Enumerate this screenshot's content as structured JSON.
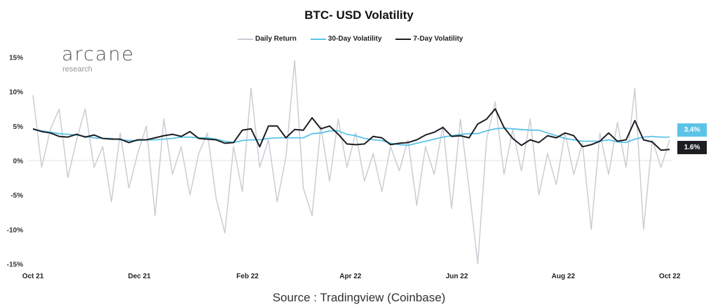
{
  "chart_data": {
    "type": "line",
    "title": "BTC- USD Volatility",
    "source": "Source : Tradingview (Coinbase)",
    "logo": {
      "name": "arcane",
      "sub": "research"
    },
    "ylim": [
      -15,
      15
    ],
    "yticks": [
      15,
      10,
      5,
      0,
      -5,
      -10,
      -15
    ],
    "ytick_labels": [
      "15%",
      "10%",
      "5%",
      "0%",
      "-5%",
      "-10%",
      "-15%"
    ],
    "xticks": [
      {
        "date": "2021-10-01",
        "label": "Oct 21"
      },
      {
        "date": "2021-12-01",
        "label": "Dec 21"
      },
      {
        "date": "2022-02-01",
        "label": "Feb 22"
      },
      {
        "date": "2022-04-01",
        "label": "Apr 22"
      },
      {
        "date": "2022-06-01",
        "label": "Jun 22"
      },
      {
        "date": "2022-08-01",
        "label": "Aug 22"
      },
      {
        "date": "2022-10-01",
        "label": "Oct 22"
      }
    ],
    "x_start": "2021-10-01",
    "x_step_days": 5,
    "legend_placement": "top",
    "series": [
      {
        "name": "Daily Return",
        "color": "#c9ced4",
        "values": [
          9.5,
          -1,
          4.5,
          7.5,
          -2.5,
          3,
          7.5,
          -1,
          2,
          -6,
          4,
          -4,
          1,
          5,
          -8,
          6,
          -2,
          2,
          -5,
          1,
          4,
          -5.5,
          -10.5,
          2,
          -4.5,
          10.5,
          -1,
          3,
          -6,
          0.5,
          14.5,
          -4,
          -8,
          5,
          -3,
          6,
          -1,
          4,
          -3,
          1,
          -4.5,
          2,
          -1.5,
          3,
          -6.5,
          2,
          -2,
          5,
          -7,
          6,
          -4,
          -15,
          3,
          8.5,
          -2,
          4.5,
          -1.5,
          6,
          -5,
          1,
          -3.5,
          4,
          -2,
          2.5,
          -10,
          4,
          -2,
          5.5,
          -1,
          10.5,
          -10,
          3,
          -1,
          3
        ]
      },
      {
        "name": "30-Day Volatility",
        "color": "#5bc3e8",
        "values": [
          4.5,
          4.3,
          4.1,
          3.9,
          3.8,
          3.7,
          3.5,
          3.3,
          3.2,
          3.2,
          3.0,
          2.9,
          2.9,
          3.0,
          3.0,
          3.1,
          3.2,
          3.4,
          3.4,
          3.3,
          3.3,
          3.1,
          2.8,
          2.6,
          2.9,
          3.0,
          3.0,
          3.2,
          3.3,
          3.3,
          3.3,
          3.3,
          3.9,
          4.0,
          4.3,
          4.3,
          3.8,
          3.6,
          3.2,
          3.0,
          2.9,
          2.5,
          2.3,
          2.2,
          2.5,
          2.8,
          3.1,
          3.4,
          3.6,
          3.8,
          3.9,
          3.9,
          4.3,
          4.6,
          4.7,
          4.6,
          4.5,
          4.4,
          4.4,
          4.0,
          3.6,
          3.2,
          3.0,
          2.8,
          2.8,
          2.8,
          3.0,
          2.7,
          2.6,
          3.1,
          3.4,
          3.5,
          3.4,
          3.4
        ],
        "last_label": "3.4%"
      },
      {
        "name": "7-Day Volatility",
        "color": "#1c1e22",
        "values": [
          4.6,
          4.2,
          4.0,
          3.5,
          3.4,
          3.8,
          3.4,
          3.7,
          3.2,
          3.1,
          3.1,
          2.6,
          3.0,
          3.0,
          3.3,
          3.6,
          3.8,
          3.5,
          4.2,
          3.2,
          3.1,
          3.0,
          2.5,
          2.6,
          4.4,
          4.6,
          2.0,
          5.0,
          5.0,
          3.3,
          4.5,
          4.4,
          6.2,
          4.6,
          5.0,
          3.8,
          2.4,
          2.3,
          2.4,
          3.5,
          3.3,
          2.3,
          2.5,
          2.6,
          3.0,
          3.7,
          4.1,
          4.8,
          3.5,
          3.6,
          3.3,
          5.3,
          6.0,
          7.5,
          4.8,
          3.2,
          2.2,
          3.0,
          2.6,
          3.6,
          3.3,
          4.0,
          3.6,
          2.0,
          2.3,
          2.8,
          4.0,
          2.8,
          3.0,
          5.8,
          3.0,
          2.7,
          1.5,
          1.6
        ],
        "last_label": "1.6%"
      }
    ]
  }
}
